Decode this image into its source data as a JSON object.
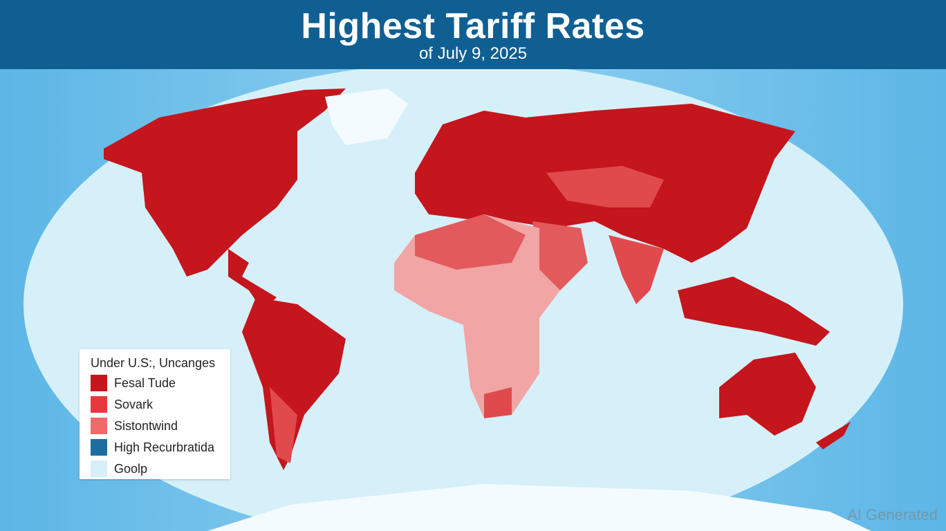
{
  "header": {
    "title": "Highest Tariff Rates",
    "subtitle": "of July 9, 2025"
  },
  "legend": {
    "title": "Under U.S:, Uncanges",
    "items": [
      {
        "label": "Fesal Tude",
        "color": "#c4161c"
      },
      {
        "label": "Sovark",
        "color": "#e8383d"
      },
      {
        "label": "Sistontwind",
        "color": "#ef6a6a"
      },
      {
        "label": "High Recurbratida",
        "color": "#1a6fa0"
      },
      {
        "label": "Goolp",
        "color": "#d6f0fa"
      }
    ]
  },
  "watermark": "AI Generated"
}
